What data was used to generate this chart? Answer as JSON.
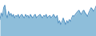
{
  "values": [
    62,
    75,
    68,
    85,
    90,
    72,
    65,
    78,
    70,
    74,
    68,
    72,
    65,
    70,
    68,
    72,
    65,
    70,
    72,
    68,
    65,
    72,
    68,
    70,
    65,
    72,
    68,
    65,
    70,
    72,
    65,
    68,
    70,
    72,
    68,
    65,
    70,
    68,
    72,
    65,
    68,
    70,
    65,
    68,
    72,
    68,
    65,
    70,
    55,
    60,
    52,
    58,
    65,
    58,
    52,
    60,
    55,
    62,
    58,
    65,
    70,
    68,
    72,
    75,
    78,
    80,
    75,
    72,
    78,
    80,
    75,
    72,
    68,
    75,
    80,
    85,
    82,
    78,
    82,
    88
  ],
  "line_color": "#4f90c1",
  "fill_color": "#7ab3d4",
  "fill_alpha": 0.85,
  "background_color": "#ffffff",
  "ylim_min": 30,
  "ylim_max": 100
}
